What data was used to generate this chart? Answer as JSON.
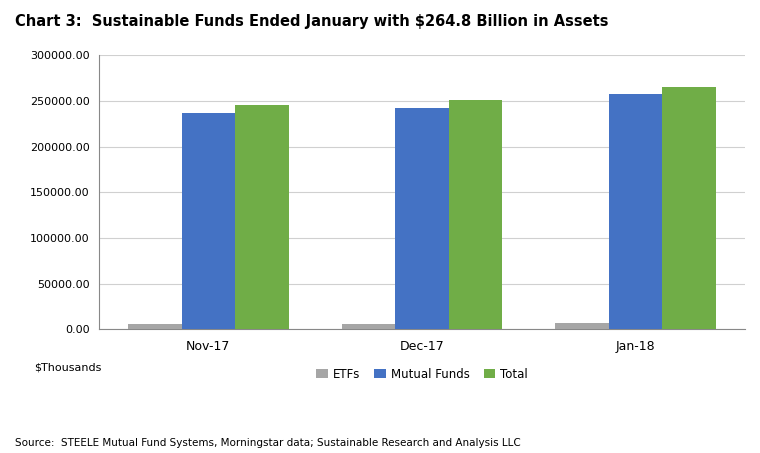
{
  "title": "Chart 3:  Sustainable Funds Ended January with $264.8 Billion in Assets",
  "categories": [
    "Nov-17",
    "Dec-17",
    "Jan-18"
  ],
  "series": {
    "ETFs": [
      5500,
      6200,
      7000
    ],
    "Mutual Funds": [
      237000,
      242000,
      258000
    ],
    "Total": [
      246000,
      250500,
      264800
    ]
  },
  "colors": {
    "ETFs": "#a6a6a6",
    "Mutual Funds": "#4472c4",
    "Total": "#70ad47"
  },
  "ylim": [
    0,
    300000
  ],
  "yticks": [
    0,
    50000,
    100000,
    150000,
    200000,
    250000,
    300000
  ],
  "ylabel_text": "$Thousands",
  "source": "Source:  STEELE Mutual Fund Systems, Morningstar data; Sustainable Research and Analysis LLC",
  "bar_width": 0.25,
  "background_color": "#ffffff",
  "grid_color": "#d0d0d0"
}
